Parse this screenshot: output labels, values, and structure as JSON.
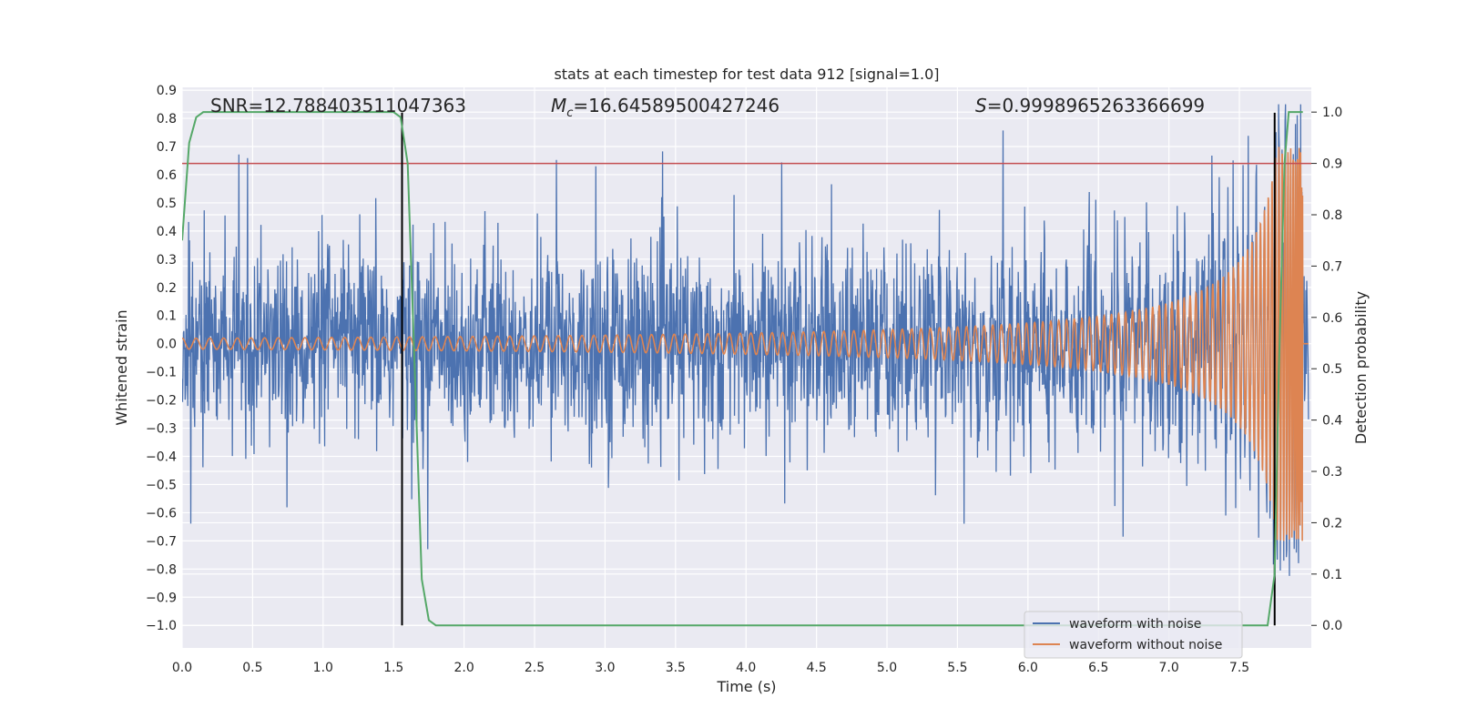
{
  "chart_data": {
    "type": "line",
    "title": "stats at each timestep for test data 912 [signal=1.0]",
    "xlabel": "Time (s)",
    "ylabel": "Whitened strain",
    "y2label": "Detection probability",
    "xlim": [
      0.0,
      8.0
    ],
    "ylim": [
      -1.08,
      0.91
    ],
    "y2lim": [
      -0.046,
      1.09
    ],
    "x_ticks": [
      0.0,
      0.5,
      1.0,
      1.5,
      2.0,
      2.5,
      3.0,
      3.5,
      4.0,
      4.5,
      5.0,
      5.5,
      6.0,
      6.5,
      7.0,
      7.5
    ],
    "x_tick_labels": [
      "0.0",
      "0.5",
      "1.0",
      "1.5",
      "2.0",
      "2.5",
      "3.0",
      "3.5",
      "4.0",
      "4.5",
      "5.0",
      "5.5",
      "6.0",
      "6.5",
      "7.0",
      "7.5"
    ],
    "y_ticks": [
      0.9,
      0.8,
      0.7,
      0.6,
      0.5,
      0.4,
      0.3,
      0.2,
      0.1,
      0.0,
      -0.1,
      -0.2,
      -0.3,
      -0.4,
      -0.5,
      -0.6,
      -0.7,
      -0.8,
      -0.9,
      -1.0
    ],
    "y_tick_labels": [
      "0.9",
      "0.8",
      "0.7",
      "0.6",
      "0.5",
      "0.4",
      "0.3",
      "0.2",
      "0.1",
      "0.0",
      "−0.1",
      "−0.2",
      "−0.3",
      "−0.4",
      "−0.5",
      "−0.6",
      "−0.7",
      "−0.8",
      "−0.9",
      "−1.0"
    ],
    "y2_ticks": [
      1.0,
      0.9,
      0.8,
      0.7,
      0.6,
      0.5,
      0.4,
      0.3,
      0.2,
      0.1,
      0.0
    ],
    "y2_tick_labels": [
      "1.0",
      "0.9",
      "0.8",
      "0.7",
      "0.6",
      "0.5",
      "0.4",
      "0.3",
      "0.2",
      "0.1",
      "0.0"
    ],
    "grid": true,
    "legend_position": "bottom-right",
    "legend": [
      "waveform with noise",
      "waveform without noise"
    ],
    "annotations": {
      "snr": "SNR=12.788403511047363",
      "mc_symbol": "M",
      "mc_sub": "c",
      "mc_value": "=16.64589500427246",
      "s_symbol": "S",
      "s_value": "=0.9998965263366699"
    },
    "threshold_line": {
      "y": 0.64,
      "color": "#c44e52"
    },
    "vertical_lines": {
      "x": [
        1.56,
        7.75
      ],
      "y_range": [
        -1.0,
        0.82
      ],
      "color": "#000000"
    },
    "series": [
      {
        "name": "waveform with noise",
        "color": "#4c72b0",
        "description_values": {
          "noise_amplitude_typical": 0.2,
          "noise_peaks": [
            0.72,
            0.8,
            0.73,
            0.74,
            0.75,
            0.72,
            0.77
          ]
        }
      },
      {
        "name": "waveform without noise",
        "color": "#dd8452",
        "chirp_amplitude_start": 0.02,
        "chirp_amplitude_end": 0.7,
        "chirp_end_time": 7.95
      },
      {
        "name": "detection probability",
        "axis": "right",
        "color": "#55a868",
        "x": [
          0.0,
          0.05,
          0.1,
          0.15,
          0.2,
          0.3,
          0.5,
          1.0,
          1.5,
          1.55,
          1.6,
          1.65,
          1.7,
          1.75,
          1.8,
          2.0,
          5.6,
          7.7,
          7.75,
          7.78,
          7.82,
          7.85,
          7.9,
          7.95
        ],
        "y": [
          0.75,
          0.94,
          0.99,
          1.0,
          1.0,
          1.0,
          1.0,
          1.0,
          1.0,
          0.99,
          0.9,
          0.5,
          0.09,
          0.01,
          0.0,
          0.0,
          0.0,
          0.0,
          0.1,
          0.5,
          0.9,
          1.0,
          1.0,
          1.0
        ]
      }
    ]
  }
}
